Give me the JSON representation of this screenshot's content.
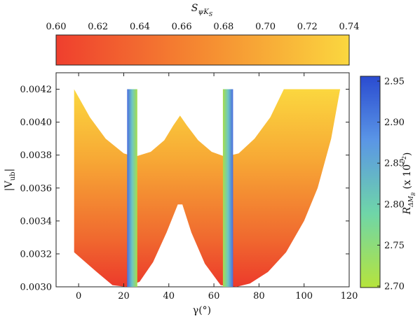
{
  "chart_data": [
    {
      "type": "heatmap",
      "xlabel": "γ(°)",
      "ylabel": "|V_ub|",
      "xlim": [
        -10,
        120
      ],
      "ylim": [
        0.003,
        0.0043
      ],
      "x_ticks": [
        0,
        20,
        40,
        60,
        80,
        100,
        120
      ],
      "y_ticks": [
        0.003,
        0.0032,
        0.0034,
        0.0036,
        0.0038,
        0.004,
        0.0042
      ],
      "x_tick_labels": [
        "0",
        "20",
        "40",
        "60",
        "80",
        "100",
        "120"
      ],
      "y_tick_labels": [
        "0.0030",
        "0.0032",
        "0.0034",
        "0.0036",
        "0.0038",
        "0.0040",
        "0.0042"
      ],
      "colored_region": {
        "quantity": "S_ψK_S",
        "upper_boundary": [
          {
            "x": -2,
            "y": 0.0042
          },
          {
            "x": 5,
            "y": 0.00403
          },
          {
            "x": 12,
            "y": 0.0039
          },
          {
            "x": 20,
            "y": 0.00381
          },
          {
            "x": 25,
            "y": 0.00379
          },
          {
            "x": 32,
            "y": 0.00382
          },
          {
            "x": 38,
            "y": 0.00389
          },
          {
            "x": 42,
            "y": 0.00398
          },
          {
            "x": 45,
            "y": 0.00404
          },
          {
            "x": 48,
            "y": 0.00398
          },
          {
            "x": 53,
            "y": 0.00389
          },
          {
            "x": 59,
            "y": 0.00382
          },
          {
            "x": 65,
            "y": 0.00379
          },
          {
            "x": 71,
            "y": 0.00381
          },
          {
            "x": 78,
            "y": 0.0039
          },
          {
            "x": 85,
            "y": 0.00403
          },
          {
            "x": 91,
            "y": 0.0042
          }
        ],
        "right_top_edge": [
          {
            "x": 91,
            "y": 0.0042
          },
          {
            "x": 116,
            "y": 0.0042
          }
        ],
        "lower_boundary": [
          {
            "x": 116,
            "y": 0.0042
          },
          {
            "x": 112,
            "y": 0.0039
          },
          {
            "x": 106,
            "y": 0.0036
          },
          {
            "x": 100,
            "y": 0.0034
          },
          {
            "x": 92,
            "y": 0.00321
          },
          {
            "x": 84,
            "y": 0.00309
          },
          {
            "x": 76,
            "y": 0.00302
          },
          {
            "x": 70,
            "y": 0.003
          },
          {
            "x": 63,
            "y": 0.00301
          },
          {
            "x": 56,
            "y": 0.00314
          },
          {
            "x": 50,
            "y": 0.00333
          },
          {
            "x": 46,
            "y": 0.0035
          },
          {
            "x": 44,
            "y": 0.0035
          },
          {
            "x": 39,
            "y": 0.00333
          },
          {
            "x": 33,
            "y": 0.00315
          },
          {
            "x": 27,
            "y": 0.00303
          },
          {
            "x": 21,
            "y": 0.003
          },
          {
            "x": 15,
            "y": 0.00301
          },
          {
            "x": 8,
            "y": 0.00309
          },
          {
            "x": -2,
            "y": 0.00321
          }
        ],
        "value_low": 0.6,
        "value_high": 0.74
      },
      "bands": [
        {
          "quantity": "R_ΔM_B",
          "x_range": [
            21.5,
            26.0
          ],
          "y_range": [
            0.003,
            0.0042
          ],
          "value_left": 2.95,
          "value_right": 2.7
        },
        {
          "quantity": "R_ΔM_B",
          "x_range": [
            64.0,
            68.5
          ],
          "y_range": [
            0.003,
            0.0042
          ],
          "value_left": 2.7,
          "value_right": 2.95
        }
      ]
    },
    {
      "type": "colorbar",
      "orientation": "horizontal",
      "title": "S_ψK_S",
      "range": [
        0.6,
        0.74
      ],
      "ticks": [
        0.6,
        0.62,
        0.64,
        0.66,
        0.68,
        0.7,
        0.72,
        0.74
      ],
      "tick_labels": [
        "0.60",
        "0.62",
        "0.64",
        "0.66",
        "0.68",
        "0.70",
        "0.72",
        "0.74"
      ],
      "colors": [
        "#ef3f2e",
        "#f58a31",
        "#fbd73f"
      ]
    },
    {
      "type": "colorbar",
      "orientation": "vertical",
      "title": "R_ΔM_B (x 10^−2)",
      "range": [
        2.7,
        2.95
      ],
      "ticks": [
        2.7,
        2.75,
        2.8,
        2.85,
        2.9,
        2.95
      ],
      "tick_labels": [
        "2.70",
        "2.75",
        "2.80",
        "2.85",
        "2.90",
        "2.95"
      ],
      "colors": [
        "#b6e43c",
        "#6fd6a8",
        "#5a95e6",
        "#2a4bd0"
      ]
    }
  ]
}
